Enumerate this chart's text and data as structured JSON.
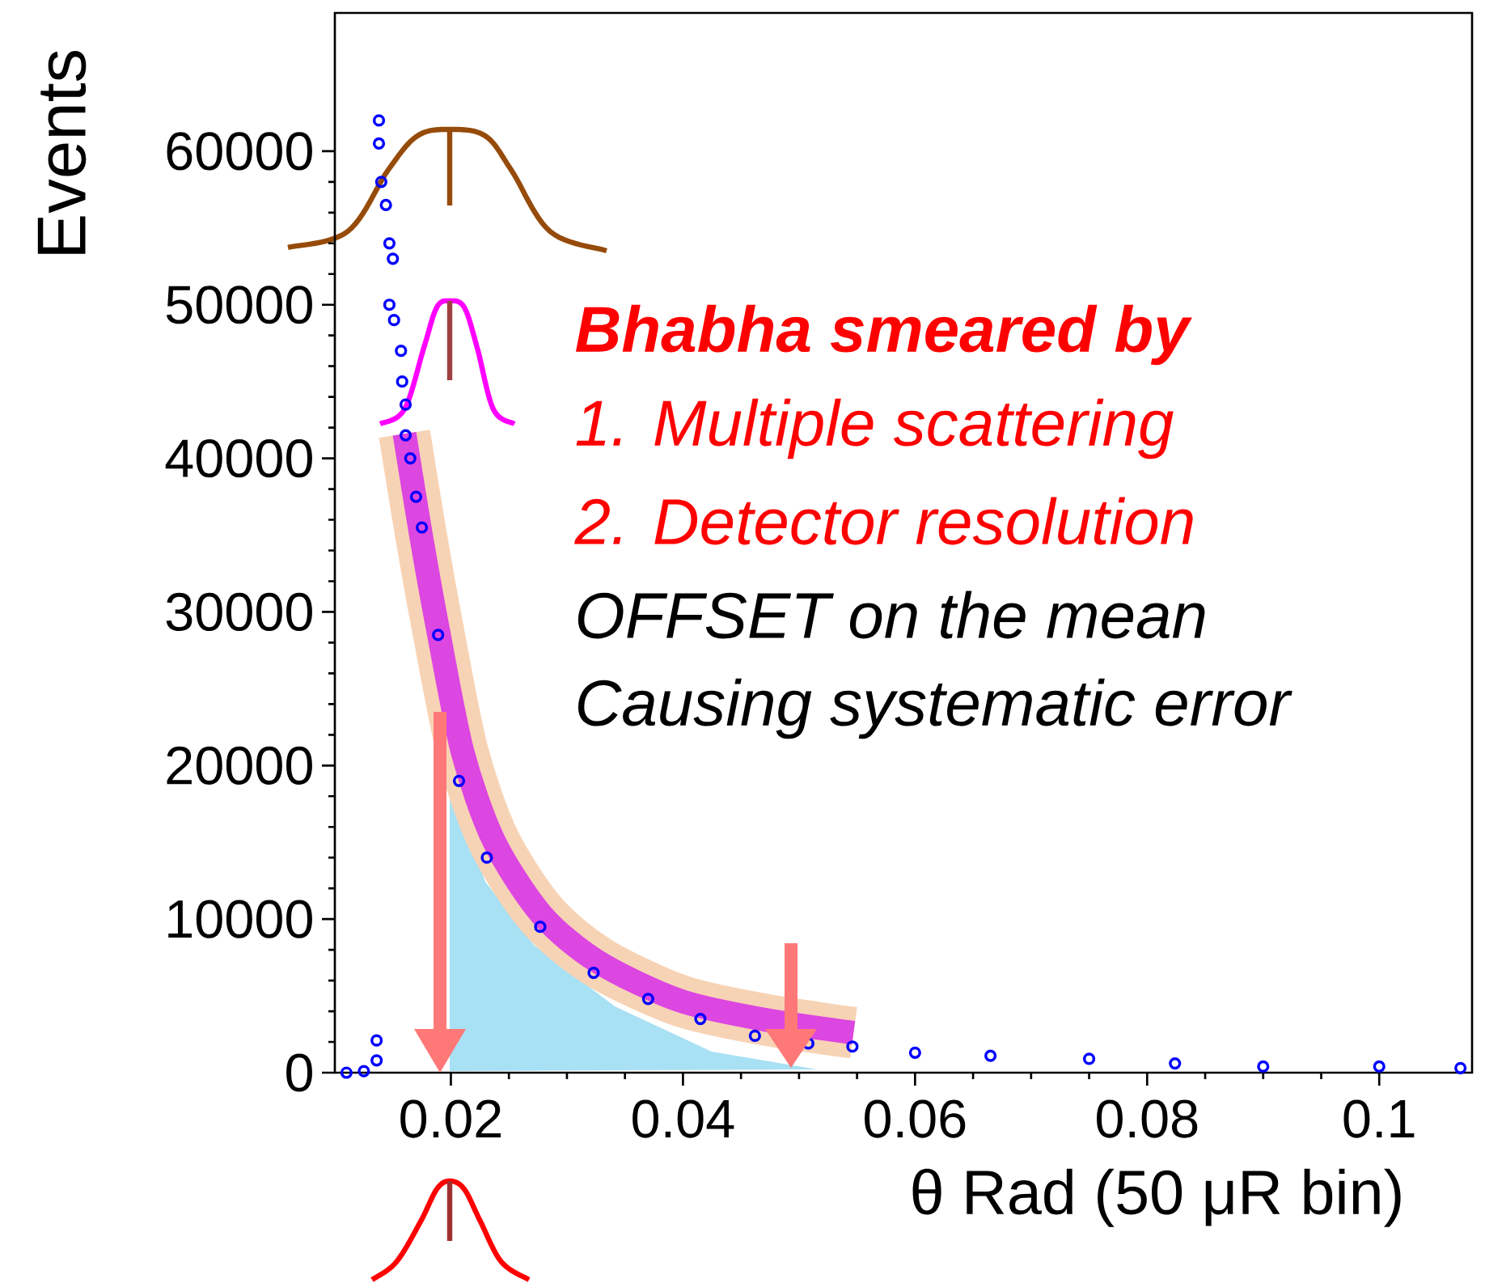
{
  "chart_data": {
    "type": "scatter",
    "xlabel": "θ Rad (50 μR bin)",
    "ylabel": "Events",
    "marker": "circle",
    "xlim": [
      0.01,
      0.108
    ],
    "ylim": [
      0,
      69000
    ],
    "xticks": [
      0.02,
      0.04,
      0.06,
      0.08,
      0.1
    ],
    "yticks": [
      0,
      10000,
      20000,
      30000,
      40000,
      50000,
      60000
    ],
    "series": [
      {
        "color": "#0000ff",
        "x": [
          0.0138,
          0.0138,
          0.014,
          0.0144,
          0.0147,
          0.015,
          0.0147,
          0.0151,
          0.0157,
          0.0158,
          0.0161,
          0.0161,
          0.0165,
          0.017,
          0.0175,
          0.0189,
          0.0207,
          0.0231,
          0.0277,
          0.0323,
          0.037,
          0.0415,
          0.0462,
          0.0508,
          0.0546,
          0.06,
          0.0665,
          0.075,
          0.0824,
          0.09,
          0.1,
          0.107,
          0.0136,
          0.0136,
          0.011,
          0.0125
        ],
        "values": [
          62000,
          60500,
          58000,
          56500,
          54000,
          53000,
          50000,
          49000,
          47000,
          45000,
          43500,
          41500,
          40000,
          37500,
          35500,
          28500,
          19000,
          14000,
          9500,
          6500,
          4800,
          3500,
          2400,
          1900,
          1700,
          1300,
          1100,
          900,
          600,
          400,
          400,
          300,
          2100,
          800,
          0,
          100
        ]
      },
      {
        "type": "line",
        "marker": "none",
        "color": "#f7d3b5",
        "x": [
          0.016,
          0.0174,
          0.0189,
          0.021,
          0.0237,
          0.0278,
          0.0327,
          0.0397,
          0.0467,
          0.0547
        ],
        "values": [
          41600,
          35100,
          28800,
          20900,
          15100,
          10300,
          7200,
          4700,
          3500,
          2600
        ]
      },
      {
        "type": "line",
        "marker": "none",
        "color": "#dc46e1",
        "x": [
          0.016,
          0.0174,
          0.0189,
          0.021,
          0.0237,
          0.0278,
          0.0327,
          0.0397,
          0.0467,
          0.0547
        ],
        "values": [
          41600,
          35100,
          28800,
          20900,
          15100,
          10300,
          7200,
          4700,
          3500,
          2600
        ]
      }
    ],
    "annotations": [
      "Bhabha smeared by",
      "1. Multiple scattering",
      "2. Detector resolution",
      "OFFSET on the mean",
      "Causing systematic error"
    ]
  }
}
